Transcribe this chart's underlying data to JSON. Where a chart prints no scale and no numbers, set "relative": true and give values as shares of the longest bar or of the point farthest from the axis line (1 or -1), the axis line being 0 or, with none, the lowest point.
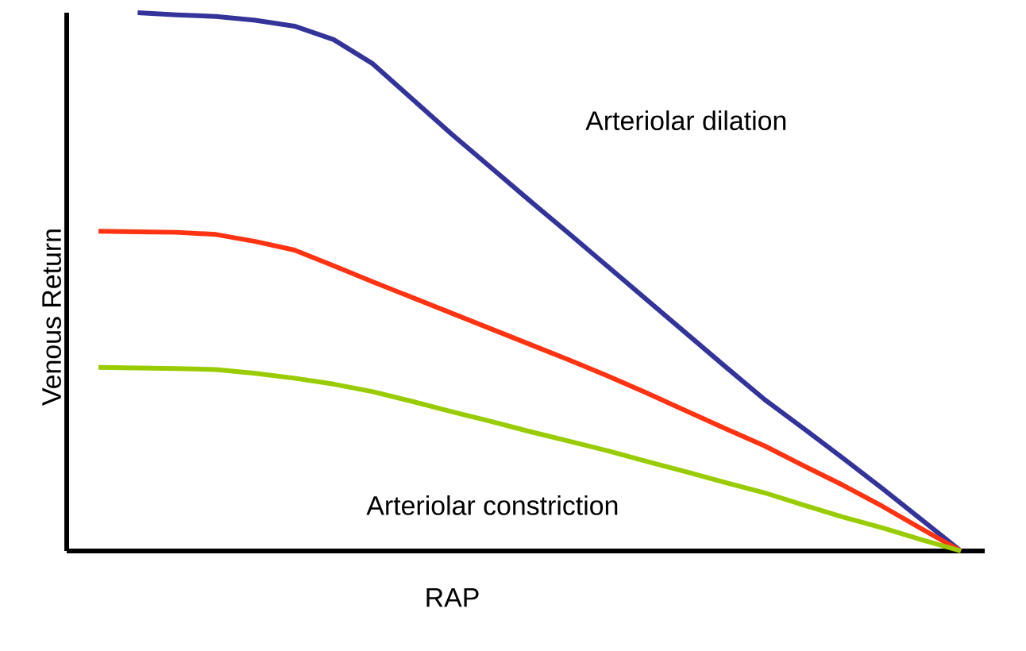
{
  "chart_data": {
    "type": "line",
    "relative": true,
    "xlabel": "RAP",
    "ylabel": "Venous Return",
    "marker": "none",
    "line_style": "solid",
    "categories": [
      null,
      null,
      null,
      null,
      null,
      null,
      null,
      null,
      null,
      null,
      null,
      null,
      null,
      null,
      null,
      null,
      null,
      null,
      null,
      null,
      null,
      null,
      null
    ],
    "series": [
      {
        "color": "#333399",
        "values": [
          null,
          1.0,
          0.996,
          0.993,
          0.986,
          0.975,
          0.95,
          0.905,
          0.84,
          0.775,
          0.713,
          0.651,
          0.59,
          0.528,
          0.466,
          0.404,
          0.342,
          0.281,
          0.227,
          0.172,
          0.116,
          0.058,
          0
        ]
      },
      {
        "color": "#ff3311",
        "values": [
          0.594,
          0.593,
          0.592,
          0.588,
          0.575,
          0.559,
          0.53,
          0.5,
          0.471,
          0.442,
          0.413,
          0.384,
          0.355,
          0.325,
          0.293,
          0.26,
          0.227,
          0.195,
          0.158,
          0.122,
          0.083,
          0.041,
          0
        ]
      },
      {
        "color": "#99cc00",
        "values": [
          0.341,
          0.34,
          0.339,
          0.337,
          0.33,
          0.321,
          0.31,
          0.296,
          0.278,
          0.259,
          0.241,
          0.222,
          0.204,
          0.186,
          0.166,
          0.147,
          0.127,
          0.108,
          0.085,
          0.063,
          0.043,
          0.021,
          0
        ]
      }
    ],
    "annotations": [
      "Arteriolar dilation",
      "Arteriolar constriction"
    ]
  }
}
